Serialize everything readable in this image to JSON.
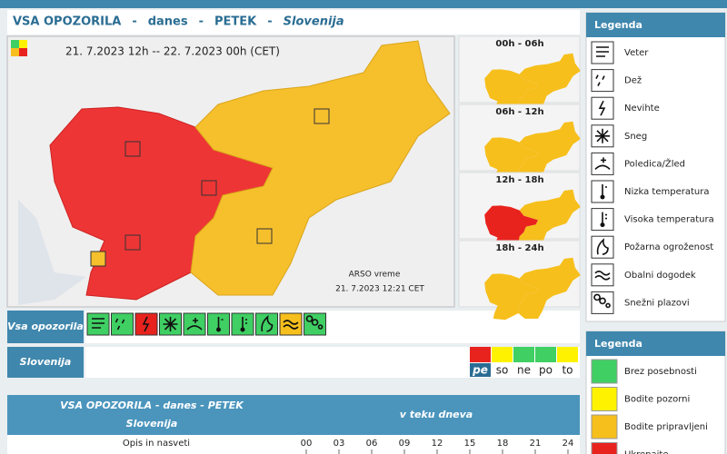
{
  "header": {
    "parts": [
      "VSA OPOZORILA",
      "-",
      "danes",
      "-",
      "PETEK",
      "-",
      "Slovenija"
    ]
  },
  "map": {
    "period": "21. 7.2023 12h -- 22. 7.2023 00h (CET)",
    "credit": "ARSO vreme",
    "issued": "21. 7.2023 12:21 CET"
  },
  "periods": [
    {
      "label": "00h - 06h",
      "west_color": "#f6bf1c"
    },
    {
      "label": "06h - 12h",
      "west_color": "#f6bf1c"
    },
    {
      "label": "12h - 18h",
      "west_color": "#e8231e"
    },
    {
      "label": "18h - 24h",
      "west_color": "#f6bf1c"
    }
  ],
  "warning_row": {
    "label": "Vsa opozorila",
    "colors": [
      "#3fcf63",
      "#3fcf63",
      "#e8231e",
      "#3fcf63",
      "#3fcf63",
      "#3fcf63",
      "#3fcf63",
      "#3fcf63",
      "#f6bf1c",
      "#3fcf63"
    ]
  },
  "region_row": {
    "label": "Slovenija",
    "days": [
      {
        "label": "pe",
        "color": "#e8231e"
      },
      {
        "label": "so",
        "color": "#fff200"
      },
      {
        "label": "ne",
        "color": "#3fcf63"
      },
      {
        "label": "po",
        "color": "#3fcf63"
      },
      {
        "label": "to",
        "color": "#fff200"
      }
    ]
  },
  "legend_types": {
    "title": "Legenda",
    "items": [
      "Veter",
      "Dež",
      "Nevihte",
      "Sneg",
      "Poledica/Žled",
      "Nizka temperatura",
      "Visoka temperatura",
      "Požarna ogroženost",
      "Obalni dogodek",
      "Snežni plazovi"
    ]
  },
  "legend_levels": {
    "title": "Legenda",
    "items": [
      {
        "label": "Brez posebnosti",
        "color": "#3fcf63"
      },
      {
        "label": "Bodite pozorni",
        "color": "#fff200"
      },
      {
        "label": "Bodite pripravljeni",
        "color": "#f6bf1c"
      },
      {
        "label": "Ukrepajte",
        "color": "#e8231e"
      }
    ]
  },
  "table": {
    "title": "VSA OPOZORILA - danes - PETEK",
    "region": "Slovenija",
    "span": "v teku dneva",
    "column": "Opis in nasveti",
    "hours": [
      "00",
      "03",
      "06",
      "09",
      "12",
      "15",
      "18",
      "21",
      "24"
    ]
  }
}
